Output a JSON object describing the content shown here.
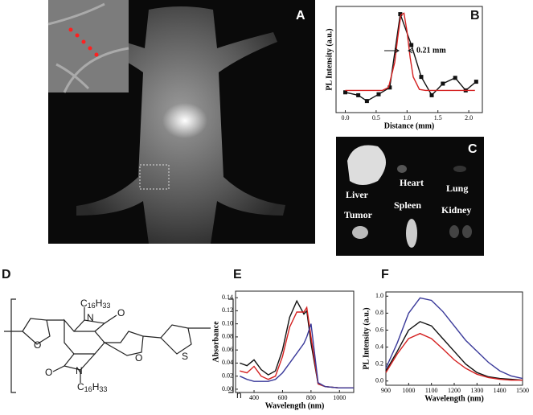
{
  "figure": {
    "panel_a": "A",
    "panel_c": "C",
    "panel_d": "D",
    "organs": [
      "Liver",
      "Heart",
      "Lung",
      "Tumor",
      "Spleen",
      "Kidney"
    ],
    "structure": {
      "substituents": [
        [
          "C",
          "16",
          "H",
          "33"
        ],
        [
          "C",
          "16",
          "H",
          "33"
        ]
      ],
      "nitrogens": [
        "N",
        "N"
      ],
      "oxygens": [
        "O",
        "O",
        "O",
        "O"
      ],
      "sulfur": "S",
      "repeat": "n"
    }
  },
  "chart_data": [
    {
      "type": "line",
      "panel": "B",
      "xlabel": "Distance (mm)",
      "ylabel": "PL Intensity (a.u.)",
      "annotation": "0.21 mm",
      "xlim": [
        -0.15,
        2.22
      ],
      "ylim": [
        0,
        1.1
      ],
      "xticks": [
        {
          "value": 0,
          "label": "0.0"
        },
        0.5,
        {
          "value": 1,
          "label": "1.0"
        },
        1.5,
        {
          "value": 2,
          "label": "2.0"
        }
      ],
      "series": [
        {
          "color": "#111111",
          "marker": "square",
          "x": [
            0.0,
            0.21,
            0.35,
            0.54,
            0.72,
            0.89,
            1.07,
            1.23,
            1.4,
            1.58,
            1.78,
            1.95,
            2.12
          ],
          "values": [
            0.21,
            0.18,
            0.12,
            0.19,
            0.26,
            1.02,
            0.7,
            0.37,
            0.18,
            0.3,
            0.36,
            0.23,
            0.32
          ]
        },
        {
          "color": "#d42020",
          "x": [
            0.0,
            0.2,
            0.4,
            0.6,
            0.7,
            0.8,
            0.85,
            0.9,
            0.95,
            1.0,
            1.05,
            1.1,
            1.2,
            1.3,
            1.4,
            1.6,
            1.8,
            2.0,
            2.1
          ],
          "values": [
            0.23,
            0.23,
            0.23,
            0.23,
            0.26,
            0.52,
            0.78,
            1.01,
            1.03,
            0.84,
            0.57,
            0.37,
            0.24,
            0.23,
            0.23,
            0.23,
            0.23,
            0.23,
            0.23
          ]
        }
      ]
    },
    {
      "type": "line",
      "panel": "E",
      "xlabel": "Wavelength (nm)",
      "ylabel": "Absorbance",
      "xlim": [
        270,
        1100
      ],
      "ylim": [
        -0.005,
        0.15
      ],
      "xticks": [
        400,
        600,
        800,
        1000
      ],
      "yticks": [
        {
          "value": 0,
          "label": "0.00"
        },
        {
          "value": 0.02,
          "label": "0.02"
        },
        {
          "value": 0.04,
          "label": "0.04"
        },
        {
          "value": 0.06,
          "label": "0.06"
        },
        {
          "value": 0.08,
          "label": "0.08"
        },
        {
          "value": 0.1,
          "label": "0.10"
        },
        {
          "value": 0.12,
          "label": "0.12"
        },
        {
          "value": 0.14,
          "label": "0.14"
        }
      ],
      "x": [
        300,
        350,
        400,
        450,
        500,
        550,
        600,
        650,
        700,
        750,
        770,
        800,
        850,
        900,
        1000,
        1100
      ],
      "series": [
        {
          "color": "#111111",
          "values": [
            0.04,
            0.036,
            0.045,
            0.03,
            0.022,
            0.028,
            0.06,
            0.11,
            0.135,
            0.115,
            0.12,
            0.07,
            0.008,
            0.004,
            0.002,
            0.002
          ]
        },
        {
          "color": "#d42020",
          "values": [
            0.028,
            0.025,
            0.035,
            0.02,
            0.015,
            0.02,
            0.05,
            0.095,
            0.118,
            0.118,
            0.125,
            0.08,
            0.008,
            0.004,
            0.002,
            0.002
          ]
        },
        {
          "color": "#3a3a9a",
          "values": [
            0.02,
            0.015,
            0.012,
            0.012,
            0.012,
            0.015,
            0.025,
            0.04,
            0.055,
            0.07,
            0.08,
            0.1,
            0.01,
            0.004,
            0.002,
            0.002
          ]
        }
      ]
    },
    {
      "type": "line",
      "panel": "F",
      "xlabel": "Wavelength (nm)",
      "ylabel": "PL Intensity (a.u.)",
      "xlim": [
        900,
        1500
      ],
      "ylim": [
        -0.05,
        1.05
      ],
      "xticks": [
        900,
        1000,
        1100,
        1200,
        1300,
        1400,
        1500
      ],
      "yticks": [
        {
          "value": 0,
          "label": "0.0"
        },
        0.2,
        0.4,
        0.6,
        0.8,
        {
          "value": 1,
          "label": "1.0"
        }
      ],
      "x": [
        900,
        950,
        1000,
        1050,
        1100,
        1150,
        1200,
        1250,
        1300,
        1350,
        1400,
        1450,
        1500
      ],
      "series": [
        {
          "color": "#111111",
          "values": [
            0.12,
            0.35,
            0.6,
            0.7,
            0.65,
            0.5,
            0.35,
            0.2,
            0.1,
            0.05,
            0.03,
            0.02,
            0.01
          ]
        },
        {
          "color": "#d42020",
          "values": [
            0.1,
            0.32,
            0.5,
            0.56,
            0.5,
            0.38,
            0.25,
            0.15,
            0.08,
            0.04,
            0.02,
            0.01,
            0.01
          ]
        },
        {
          "color": "#3a3a9a",
          "values": [
            0.15,
            0.45,
            0.8,
            0.98,
            0.95,
            0.82,
            0.65,
            0.48,
            0.35,
            0.22,
            0.12,
            0.06,
            0.03
          ]
        }
      ]
    }
  ]
}
